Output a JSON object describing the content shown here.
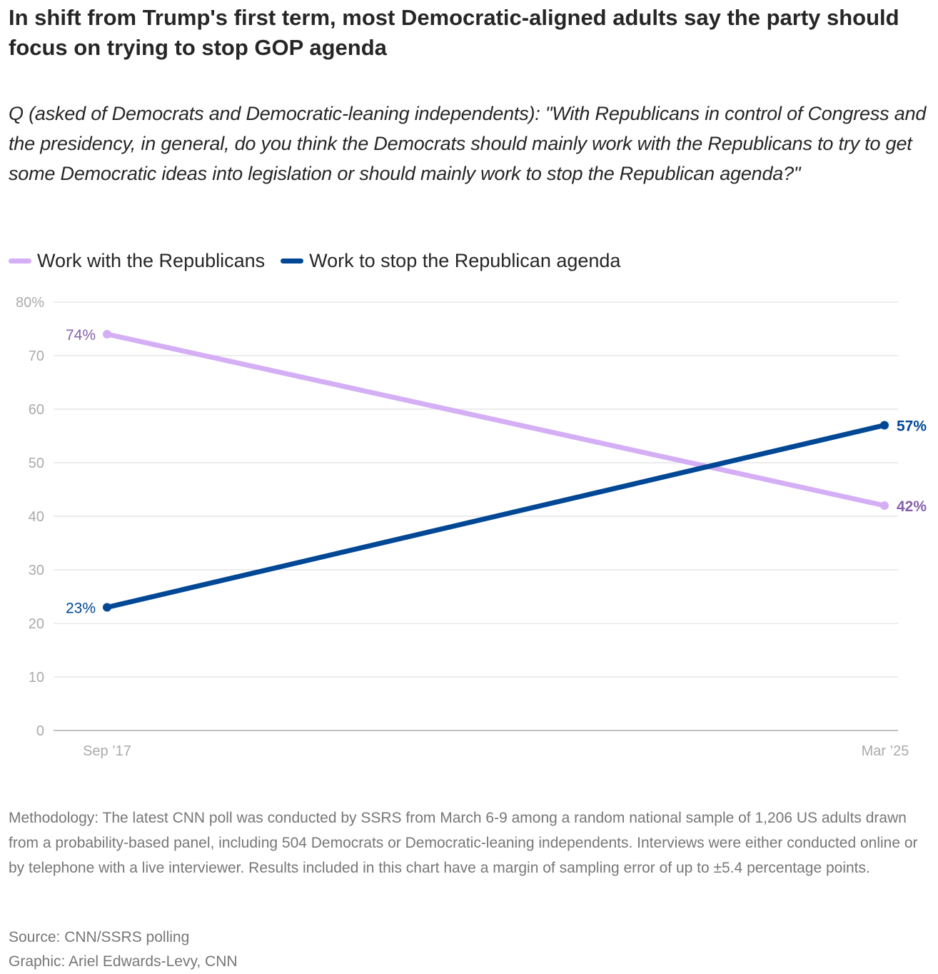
{
  "chart_data": {
    "type": "line",
    "title": "In shift from Trump's first term, most Democratic-aligned adults say the party should focus on trying to stop GOP agenda",
    "subtitle": "Q (asked of Democrats and Democratic-leaning independents): \"With Republicans in control of Congress and the presidency, in general, do you think the Democrats should mainly work with the Republicans to try to get some Democratic ideas into legislation or should mainly work to stop the Republican agenda?\"",
    "x": [
      "Sep ’17",
      "Mar ’25"
    ],
    "series": [
      {
        "name": "Work with the Republicans",
        "values": [
          74,
          42
        ],
        "labels": [
          "74%",
          "42%"
        ],
        "color": "#d4aff5",
        "label_color": "#8661ad"
      },
      {
        "name": "Work to stop the Republican agenda",
        "values": [
          23,
          57
        ],
        "labels": [
          "23%",
          "57%"
        ],
        "color": "#004895",
        "label_color": "#004895"
      }
    ],
    "ylim": [
      0,
      80
    ],
    "yticks": [
      0,
      10,
      20,
      30,
      40,
      50,
      60,
      70,
      80
    ],
    "ytick_labels": [
      "0",
      "10",
      "20",
      "30",
      "40",
      "50",
      "60",
      "70",
      "80%"
    ],
    "grid": true,
    "legend": "top-left"
  },
  "footer": {
    "methodology": "Methodology: The latest CNN poll was conducted by SSRS from March 6-9 among a random national sample of 1,206 US adults drawn from a probability-based panel, including 504 Democrats or Democratic-leaning independents. Interviews were either conducted online or by telephone with a live interviewer. Results included in this chart have a margin of sampling error of up to ±5.4 percentage points.",
    "source": "Source: CNN/SSRS polling",
    "graphic": "Graphic: Ariel Edwards-Levy, CNN"
  }
}
